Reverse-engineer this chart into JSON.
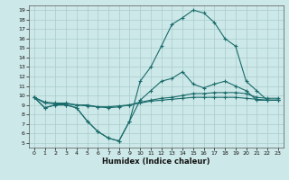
{
  "xlabel": "Humidex (Indice chaleur)",
  "bg_color": "#cde8e8",
  "grid_color": "#a8cccc",
  "line_color": "#1a6b6b",
  "xlim": [
    -0.5,
    23.5
  ],
  "ylim": [
    4.5,
    19.5
  ],
  "xticks": [
    0,
    1,
    2,
    3,
    4,
    5,
    6,
    7,
    8,
    9,
    10,
    11,
    12,
    13,
    14,
    15,
    16,
    17,
    18,
    19,
    20,
    21,
    22,
    23
  ],
  "yticks": [
    5,
    6,
    7,
    8,
    9,
    10,
    11,
    12,
    13,
    14,
    15,
    16,
    17,
    18,
    19
  ],
  "line1_x": [
    0,
    1,
    2,
    3,
    4,
    5,
    6,
    7,
    8,
    9,
    10,
    11,
    12,
    13,
    14,
    15,
    16,
    17,
    18,
    19,
    20,
    21,
    22,
    23
  ],
  "line1_y": [
    9.8,
    8.7,
    9.0,
    9.0,
    8.7,
    7.3,
    6.2,
    5.5,
    5.2,
    7.3,
    11.5,
    13.0,
    15.2,
    17.5,
    18.2,
    19.0,
    18.7,
    17.7,
    16.0,
    15.2,
    11.5,
    10.5,
    9.5,
    9.5
  ],
  "line2_x": [
    0,
    1,
    2,
    3,
    4,
    5,
    6,
    7,
    8,
    9,
    10,
    11,
    12,
    13,
    14,
    15,
    16,
    17,
    18,
    19,
    20,
    21,
    22,
    23
  ],
  "line2_y": [
    9.8,
    8.7,
    9.0,
    9.0,
    8.7,
    7.3,
    6.2,
    5.5,
    5.2,
    7.3,
    9.5,
    10.5,
    11.5,
    11.8,
    12.5,
    11.2,
    10.8,
    11.2,
    11.5,
    11.0,
    10.5,
    9.5,
    9.5,
    9.5
  ],
  "line3_x": [
    0,
    1,
    2,
    3,
    4,
    5,
    6,
    7,
    8,
    9,
    10,
    11,
    12,
    13,
    14,
    15,
    16,
    17,
    18,
    19,
    20,
    21,
    22,
    23
  ],
  "line3_y": [
    9.8,
    9.3,
    9.2,
    9.2,
    9.0,
    9.0,
    8.8,
    8.8,
    8.9,
    9.0,
    9.3,
    9.5,
    9.7,
    9.8,
    10.0,
    10.2,
    10.2,
    10.3,
    10.3,
    10.3,
    10.2,
    9.8,
    9.7,
    9.7
  ],
  "line4_x": [
    0,
    1,
    2,
    3,
    4,
    5,
    6,
    7,
    8,
    9,
    10,
    11,
    12,
    13,
    14,
    15,
    16,
    17,
    18,
    19,
    20,
    21,
    22,
    23
  ],
  "line4_y": [
    9.8,
    9.2,
    9.1,
    9.1,
    9.0,
    8.9,
    8.8,
    8.7,
    8.8,
    9.0,
    9.2,
    9.4,
    9.5,
    9.6,
    9.7,
    9.8,
    9.8,
    9.8,
    9.8,
    9.8,
    9.7,
    9.6,
    9.5,
    9.5
  ]
}
